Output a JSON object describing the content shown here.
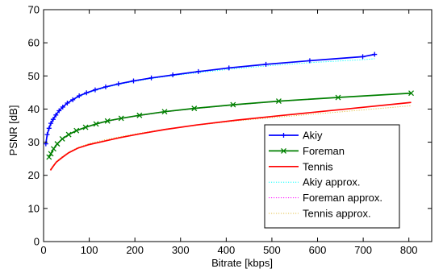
{
  "chart_data": {
    "type": "line",
    "title": "",
    "xlabel": "Bitrate [kbps]",
    "ylabel": "PSNR [dB]",
    "xlim": [
      0,
      850
    ],
    "ylim": [
      0,
      70
    ],
    "xticks": [
      0,
      100,
      200,
      300,
      400,
      500,
      600,
      700,
      800
    ],
    "yticks": [
      0,
      10,
      20,
      30,
      40,
      50,
      60,
      70
    ],
    "grid": false,
    "legend_position": "lower-right",
    "series": [
      {
        "name": "Akiy",
        "color": "#0000ff",
        "style": "solid",
        "marker": "plus",
        "x": [
          5,
          8,
          12,
          16,
          21,
          27,
          34,
          42,
          52,
          64,
          78,
          94,
          113,
          136,
          164,
          197,
          236,
          283,
          339,
          406,
          487,
          583,
          699,
          725
        ],
        "y": [
          29.5,
          32.3,
          34.2,
          35.7,
          36.9,
          38.2,
          39.5,
          40.6,
          41.8,
          42.8,
          44.0,
          44.9,
          45.8,
          46.7,
          47.6,
          48.5,
          49.4,
          50.3,
          51.3,
          52.4,
          53.5,
          54.6,
          55.8,
          56.5
        ]
      },
      {
        "name": "Foreman",
        "color": "#008000",
        "style": "solid",
        "marker": "x",
        "x": [
          12,
          16,
          22,
          30,
          41,
          55,
          72,
          92,
          115,
          140,
          170,
          210,
          265,
          330,
          415,
          515,
          645,
          805
        ],
        "y": [
          25.5,
          26.5,
          28.0,
          29.5,
          31.0,
          32.3,
          33.5,
          34.5,
          35.5,
          36.4,
          37.2,
          38.1,
          39.2,
          40.2,
          41.3,
          42.4,
          43.5,
          44.8
        ]
      },
      {
        "name": "Tennis",
        "color": "#ff0000",
        "style": "solid",
        "marker": "none",
        "x": [
          15,
          20,
          28,
          40,
          55,
          75,
          100,
          130,
          165,
          210,
          265,
          335,
          420,
          525,
          655,
          805
        ],
        "y": [
          21.5,
          22.5,
          24.0,
          25.3,
          26.8,
          28.2,
          29.3,
          30.2,
          31.3,
          32.5,
          33.8,
          35.2,
          36.6,
          38.1,
          39.9,
          42.0
        ]
      },
      {
        "name": "Akiy approx.",
        "color": "#00ffff",
        "style": "dotted",
        "marker": "none",
        "x": [
          5,
          8,
          12,
          16,
          21,
          27,
          34,
          42,
          52,
          64,
          78,
          94,
          113,
          136,
          164,
          197,
          236,
          283,
          339,
          406,
          487,
          583,
          699,
          725
        ],
        "y": [
          29.8,
          32.5,
          34.4,
          35.8,
          37.0,
          38.3,
          39.5,
          40.6,
          41.7,
          42.7,
          43.8,
          44.7,
          45.6,
          46.5,
          47.4,
          48.3,
          49.2,
          50.1,
          51.0,
          52.0,
          53.0,
          54.0,
          54.9,
          55.2
        ]
      },
      {
        "name": "Foreman approx.",
        "color": "#ff00ff",
        "style": "dotted",
        "marker": "none",
        "x": [
          12,
          16,
          22,
          30,
          41,
          55,
          72,
          92,
          115,
          140,
          170,
          210,
          265,
          330,
          415,
          515,
          645,
          805
        ],
        "y": [
          25.3,
          26.4,
          27.9,
          29.4,
          30.9,
          32.2,
          33.4,
          34.4,
          35.4,
          36.3,
          37.1,
          38.0,
          39.1,
          40.1,
          41.2,
          42.3,
          43.5,
          44.8
        ]
      },
      {
        "name": "Tennis approx.",
        "color": "#e5c24a",
        "style": "dotted",
        "marker": "none",
        "x": [
          15,
          20,
          28,
          40,
          55,
          75,
          100,
          130,
          165,
          210,
          265,
          335,
          420,
          525,
          655,
          805
        ],
        "y": [
          21.8,
          22.8,
          24.2,
          25.6,
          27.0,
          28.4,
          29.6,
          30.6,
          31.6,
          32.7,
          33.9,
          35.1,
          36.4,
          37.7,
          39.2,
          41.0
        ]
      }
    ]
  }
}
